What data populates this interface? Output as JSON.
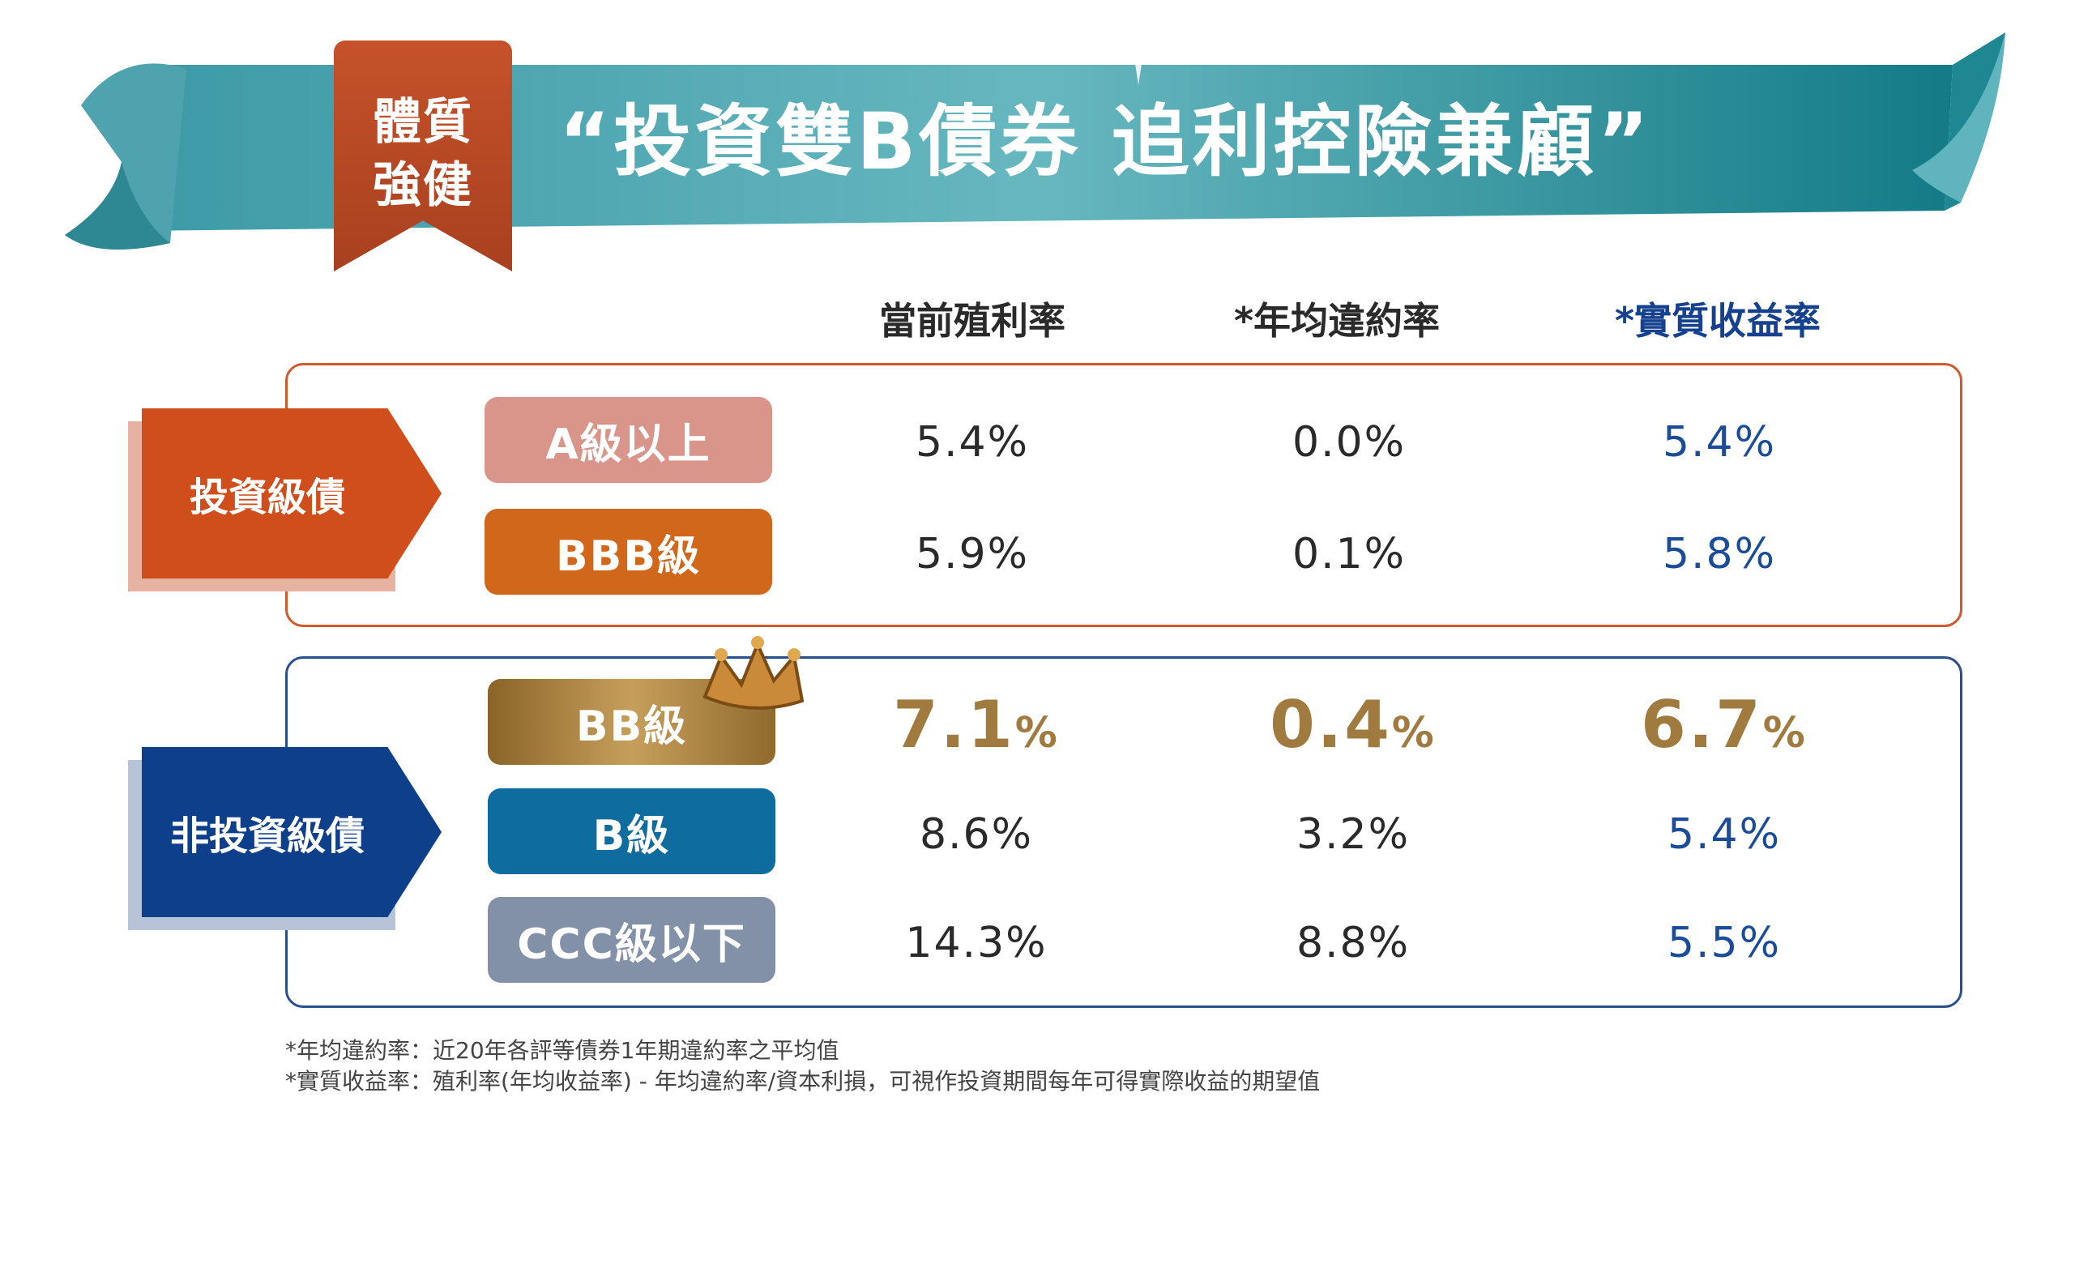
{
  "banner": {
    "tag_line1": "體質",
    "tag_line2": "強健",
    "title": "“投資雙B債券  追利控險兼顧”"
  },
  "columns": [
    "當前殖利率",
    "*年均違約率",
    "*實質收益率"
  ],
  "groups": [
    {
      "label": "投資級債",
      "color": "#cf4e1c",
      "rows": [
        {
          "grade": "A級以上",
          "grade_color": "#d9958a",
          "yield": "5.4%",
          "default": "0.0%",
          "real": "5.4%"
        },
        {
          "grade": "BBB級",
          "grade_color": "#d1671a",
          "yield": "5.9%",
          "default": "0.1%",
          "real": "5.8%"
        }
      ]
    },
    {
      "label": "非投資級債",
      "color": "#0d3f8a",
      "rows": [
        {
          "grade": "BB級",
          "grade_color": "#a8823f",
          "yield_num": "7.1",
          "default_num": "0.4",
          "real_num": "6.7",
          "pct": "%",
          "highlight": true
        },
        {
          "grade": "B級",
          "grade_color": "#0f6c9e",
          "yield": "8.6%",
          "default": "3.2%",
          "real": "5.4%"
        },
        {
          "grade": "CCC級以下",
          "grade_color": "#8391a8",
          "yield": "14.3%",
          "default": "8.8%",
          "real": "5.5%"
        }
      ]
    }
  ],
  "notes": [
    "*年均違約率：近20年各評等債券1年期違約率之平均值",
    "*實質收益率：殖利率(年均收益率) - 年均違約率/資本利損，可視作投資期間每年可得實際收益的期望值"
  ],
  "icons": [
    "crown-icon",
    "sparkle-icon"
  ]
}
